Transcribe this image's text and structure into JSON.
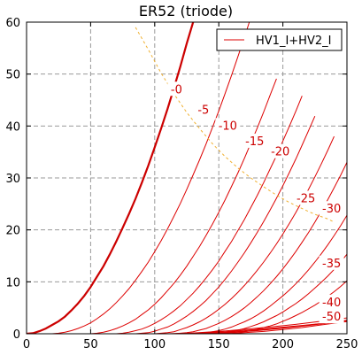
{
  "chart_data": {
    "type": "line",
    "title": "ER52 (triode)",
    "xlabel": "",
    "ylabel": "",
    "xlim": [
      0,
      250
    ],
    "ylim": [
      0,
      60
    ],
    "xticks": [
      "0",
      "50",
      "100",
      "150",
      "200",
      "250"
    ],
    "yticks": [
      "0",
      "10",
      "20",
      "30",
      "40",
      "50",
      "60"
    ],
    "grid": true,
    "legend": {
      "placement": "top-right",
      "entries": [
        "HV1_I+HV2_I"
      ]
    },
    "colors": {
      "curve": "#dd0000",
      "bold_curve": "#cc0000",
      "load_line": "#f0b030",
      "grid": "#999999"
    },
    "curve_labels": [
      {
        "text": "-0",
        "x": 117,
        "y": 47
      },
      {
        "text": "-5",
        "x": 138,
        "y": 43
      },
      {
        "text": "-10",
        "x": 157,
        "y": 40
      },
      {
        "text": "-15",
        "x": 178,
        "y": 37
      },
      {
        "text": "-20",
        "x": 198,
        "y": 35
      },
      {
        "text": "-25",
        "x": 218,
        "y": 26
      },
      {
        "text": "-30",
        "x": 238,
        "y": 24
      },
      {
        "text": "-35",
        "x": 238,
        "y": 13.5
      },
      {
        "text": "-40",
        "x": 238,
        "y": 6
      },
      {
        "text": "-50",
        "x": 238,
        "y": 3.2
      }
    ],
    "series": [
      {
        "bold": true,
        "x": [
          0,
          5,
          10,
          15,
          20,
          25,
          30,
          35,
          40,
          45,
          50,
          55,
          60,
          65,
          70,
          75,
          80,
          85,
          90,
          95,
          100,
          105,
          110,
          115,
          120,
          125,
          130,
          135
        ],
        "y": [
          0,
          0.1,
          0.5,
          1.0,
          1.7,
          2.4,
          3.3,
          4.5,
          5.8,
          7.3,
          9.0,
          11,
          13,
          15.3,
          17.8,
          20.4,
          23.1,
          26,
          29.1,
          32.4,
          35.9,
          39.5,
          43.3,
          47.3,
          51.5,
          55.9,
          60,
          64
        ]
      },
      {
        "bold": false,
        "x": [
          20,
          25,
          30,
          35,
          40,
          45,
          50,
          55,
          60,
          65,
          70,
          75,
          80,
          85,
          90,
          95,
          100,
          105,
          110,
          115,
          120,
          125,
          130,
          135,
          140,
          145,
          150,
          155,
          160,
          165,
          170,
          175,
          180
        ],
        "y": [
          0,
          0.1,
          0.3,
          0.6,
          1.0,
          1.5,
          2.1,
          2.9,
          3.8,
          4.8,
          6.0,
          7.3,
          8.7,
          10.3,
          12.0,
          13.8,
          15.8,
          17.9,
          20.2,
          22.6,
          25.1,
          27.8,
          30.6,
          33.5,
          36.5,
          39.7,
          42.9,
          46.3,
          49.8,
          53.4,
          57.1,
          60.9,
          64
        ]
      },
      {
        "bold": false,
        "x": [
          50,
          55,
          60,
          65,
          70,
          75,
          80,
          85,
          90,
          95,
          100,
          105,
          110,
          115,
          120,
          125,
          130,
          135,
          140,
          145,
          150,
          155,
          160,
          165,
          170,
          175,
          180,
          185,
          190,
          195
        ],
        "y": [
          0,
          0.1,
          0.3,
          0.6,
          1.0,
          1.5,
          2.1,
          2.8,
          3.7,
          4.6,
          5.7,
          6.9,
          8.3,
          9.7,
          11.3,
          13.0,
          14.9,
          16.8,
          18.9,
          21.1,
          23.4,
          25.8,
          28.4,
          31.0,
          33.8,
          36.7,
          39.6,
          42.7,
          45.9,
          49.1
        ]
      },
      {
        "bold": false,
        "x": [
          70,
          75,
          80,
          85,
          90,
          95,
          100,
          105,
          110,
          115,
          120,
          125,
          130,
          135,
          140,
          145,
          150,
          155,
          160,
          165,
          170,
          175,
          180,
          185,
          190,
          195,
          200,
          205,
          210,
          215
        ],
        "y": [
          0,
          0.1,
          0.3,
          0.6,
          0.9,
          1.4,
          2.0,
          2.7,
          3.5,
          4.4,
          5.4,
          6.6,
          7.8,
          9.2,
          10.7,
          12.3,
          14.0,
          15.9,
          17.8,
          19.9,
          22.0,
          24.3,
          26.6,
          29.1,
          31.7,
          34.3,
          37.1,
          39.9,
          42.8,
          45.8
        ]
      },
      {
        "bold": false,
        "x": [
          85,
          90,
          95,
          100,
          105,
          110,
          115,
          120,
          125,
          130,
          135,
          140,
          145,
          150,
          155,
          160,
          165,
          170,
          175,
          180,
          185,
          190,
          195,
          200,
          205,
          210,
          215,
          220,
          225
        ],
        "y": [
          0,
          0.1,
          0.2,
          0.5,
          0.9,
          1.3,
          1.9,
          2.6,
          3.4,
          4.3,
          5.3,
          6.4,
          7.7,
          9.0,
          10.5,
          12.1,
          13.8,
          15.6,
          17.5,
          19.5,
          21.6,
          23.8,
          26.1,
          28.5,
          31.0,
          33.6,
          36.3,
          39.1,
          41.9
        ]
      },
      {
        "bold": false,
        "x": [
          100,
          105,
          110,
          115,
          120,
          125,
          130,
          135,
          140,
          145,
          150,
          155,
          160,
          165,
          170,
          175,
          180,
          185,
          190,
          195,
          200,
          205,
          210,
          215,
          220,
          225,
          230,
          235,
          240
        ],
        "y": [
          0,
          0.1,
          0.2,
          0.4,
          0.8,
          1.2,
          1.7,
          2.3,
          3.0,
          3.8,
          4.7,
          5.7,
          6.8,
          8.0,
          9.3,
          10.7,
          12.2,
          13.8,
          15.5,
          17.3,
          19.2,
          21.2,
          23.3,
          25.5,
          27.8,
          30.2,
          32.7,
          35.3,
          38.0
        ]
      },
      {
        "bold": false,
        "x": [
          115,
          120,
          125,
          130,
          135,
          140,
          145,
          150,
          155,
          160,
          165,
          170,
          175,
          180,
          185,
          190,
          195,
          200,
          205,
          210,
          215,
          220,
          225,
          230,
          235,
          240,
          245,
          250
        ],
        "y": [
          0,
          0.1,
          0.2,
          0.4,
          0.7,
          1.0,
          1.5,
          2.0,
          2.6,
          3.3,
          4.1,
          5.0,
          6.0,
          7.1,
          8.3,
          9.6,
          11.0,
          12.5,
          14.1,
          15.8,
          17.6,
          19.5,
          21.5,
          23.6,
          25.8,
          28.1,
          30.5,
          33.0
        ]
      },
      {
        "bold": false,
        "x": [
          130,
          135,
          140,
          145,
          150,
          155,
          160,
          165,
          170,
          175,
          180,
          185,
          190,
          195,
          200,
          205,
          210,
          215,
          220,
          225,
          230,
          235,
          240,
          245,
          250
        ],
        "y": [
          0,
          0.1,
          0.2,
          0.4,
          0.6,
          0.9,
          1.3,
          1.8,
          2.3,
          2.9,
          3.6,
          4.4,
          5.3,
          6.3,
          7.3,
          8.4,
          9.6,
          10.9,
          12.3,
          13.8,
          15.4,
          17.1,
          18.9,
          20.8,
          22.8
        ]
      },
      {
        "bold": false,
        "x": [
          140,
          145,
          150,
          155,
          160,
          165,
          170,
          175,
          180,
          185,
          190,
          195,
          200,
          205,
          210,
          215,
          220,
          225,
          230,
          235,
          240,
          245,
          250
        ],
        "y": [
          0,
          0.1,
          0.2,
          0.3,
          0.5,
          0.7,
          1.0,
          1.4,
          1.8,
          2.3,
          2.9,
          3.5,
          4.2,
          5.0,
          5.8,
          6.7,
          7.7,
          8.8,
          9.9,
          11.1,
          12.4,
          13.8,
          15.3
        ]
      },
      {
        "bold": false,
        "x": [
          150,
          155,
          160,
          165,
          170,
          175,
          180,
          185,
          190,
          195,
          200,
          205,
          210,
          215,
          220,
          225,
          230,
          235,
          240,
          245,
          250
        ],
        "y": [
          0,
          0.1,
          0.2,
          0.3,
          0.4,
          0.6,
          0.9,
          1.2,
          1.5,
          1.9,
          2.4,
          2.9,
          3.5,
          4.1,
          4.8,
          5.5,
          6.3,
          7.2,
          8.1,
          9.1,
          10.2
        ]
      },
      {
        "bold": false,
        "x": [
          110,
          130,
          150,
          170,
          190,
          210,
          230,
          250
        ],
        "y": [
          0,
          0.15,
          0.45,
          0.85,
          1.3,
          1.8,
          2.4,
          3.05
        ]
      },
      {
        "bold": false,
        "x": [
          115,
          135,
          155,
          175,
          195,
          215,
          235,
          250
        ],
        "y": [
          0,
          0.15,
          0.4,
          0.75,
          1.15,
          1.6,
          2.1,
          2.5
        ]
      },
      {
        "bold": false,
        "x": [
          130,
          150,
          170,
          190,
          210,
          230,
          250
        ],
        "y": [
          0,
          0.2,
          0.5,
          0.9,
          1.4,
          1.95,
          2.6
        ]
      },
      {
        "bold": false,
        "x": [
          140,
          160,
          180,
          200,
          220,
          240,
          250
        ],
        "y": [
          0,
          0.25,
          0.6,
          1.05,
          1.6,
          2.2,
          2.55
        ]
      },
      {
        "bold": false,
        "x": [
          155,
          170,
          185,
          200,
          215,
          230,
          250
        ],
        "y": [
          0,
          0.2,
          0.45,
          0.8,
          1.2,
          1.7,
          2.35
        ]
      }
    ],
    "load_line": {
      "x": [
        85,
        95,
        105,
        115,
        125,
        135,
        145,
        155,
        165,
        175,
        185,
        195,
        205,
        215,
        225,
        235,
        240
      ],
      "y": [
        59,
        54.7,
        50.2,
        46.2,
        42.6,
        39.5,
        36.6,
        34.1,
        31.9,
        30.0,
        28.3,
        26.7,
        25.3,
        24.1,
        23.0,
        22.1,
        21.5
      ]
    }
  }
}
